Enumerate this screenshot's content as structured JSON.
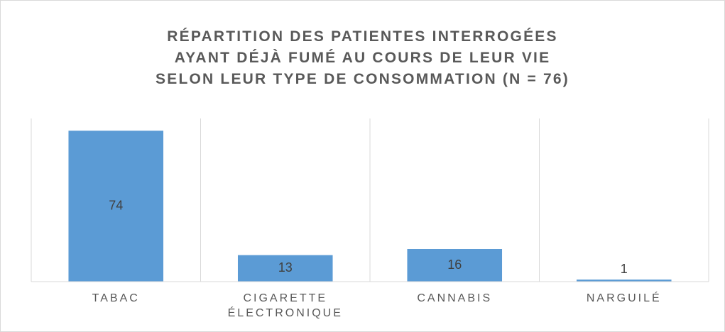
{
  "chart_data": {
    "type": "bar",
    "title": "RÉPARTITION DES PATIENTES INTERROGÉES\nAYANT DÉJÀ FUMÉ AU COURS DE LEUR VIE\nSELON LEUR TYPE DE CONSOMMATION (N = 76)",
    "categories": [
      "TABAC",
      "CIGARETTE ÉLECTRONIQUE",
      "CANNABIS",
      "NARGUILÉ"
    ],
    "values": [
      74,
      13,
      16,
      1
    ],
    "color": "#5b9bd5",
    "ylim": [
      0,
      80
    ]
  }
}
